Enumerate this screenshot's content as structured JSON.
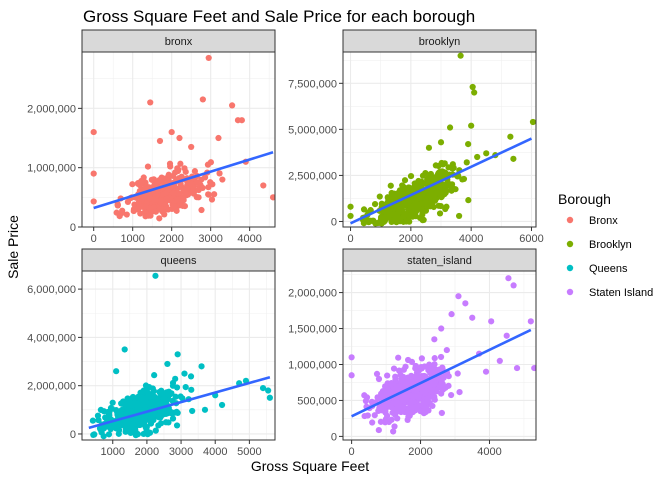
{
  "chart_data": {
    "type": "scatter",
    "title": "Gross Square Feet and Sale Price for each borough",
    "xlabel": "Gross Square Feet",
    "ylabel": "Sale Price",
    "legend": {
      "title": "Borough",
      "placement": "right",
      "entries": [
        {
          "label": "Bronx",
          "color": "#F8766D"
        },
        {
          "label": "Brooklyn",
          "color": "#7CAE00"
        },
        {
          "label": "Queens",
          "color": "#00BFC4"
        },
        {
          "label": "Staten Island",
          "color": "#C77CFF"
        }
      ]
    },
    "panels": [
      {
        "strip": "bronx",
        "color": "#F8766D",
        "xlim": [
          -300,
          4650
        ],
        "ylim": [
          0,
          2950000
        ],
        "xticks": [
          0,
          1000,
          2000,
          3000,
          4000
        ],
        "xtick_labels": [
          "0",
          "1000",
          "2000",
          "3000",
          "4000"
        ],
        "yticks": [
          0,
          1000000,
          2000000
        ],
        "ytick_labels": [
          "0",
          "1,000,000",
          "2,000,000"
        ],
        "fit": {
          "x": [
            0,
            4600
          ],
          "y": [
            320000,
            1260000
          ]
        },
        "cluster": {
          "cx": 1850,
          "sx": 500,
          "cy": 560000,
          "sy": 180000,
          "slope": 150,
          "n": 300,
          "seed": 11
        },
        "points": [
          [
            2950,
            2850000
          ],
          [
            1450,
            2100000
          ],
          [
            2800,
            2150000
          ],
          [
            3550,
            2050000
          ],
          [
            3700,
            1800000
          ],
          [
            3800,
            1800000
          ],
          [
            0,
            1600000
          ],
          [
            0,
            900000
          ],
          [
            0,
            430000
          ],
          [
            4350,
            700000
          ],
          [
            4600,
            500000
          ],
          [
            2000,
            1600000
          ],
          [
            2500,
            1350000
          ],
          [
            3200,
            1500000
          ],
          [
            2200,
            1500000
          ],
          [
            3900,
            1100000
          ],
          [
            1700,
            1450000
          ],
          [
            3300,
            800000
          ]
        ]
      },
      {
        "strip": "brooklyn",
        "color": "#7CAE00",
        "xlim": [
          -250,
          6150
        ],
        "ylim": [
          -300000,
          9200000
        ],
        "xticks": [
          0,
          2000,
          4000,
          6000
        ],
        "xtick_labels": [
          "0",
          "2000",
          "4000",
          "6000"
        ],
        "yticks": [
          0,
          2500000,
          5000000,
          7500000
        ],
        "ytick_labels": [
          "0",
          "2,500,000",
          "5,000,000",
          "7,500,000"
        ],
        "fit": {
          "x": [
            0,
            6000
          ],
          "y": [
            -100000,
            4500000
          ]
        },
        "cluster": {
          "cx": 2100,
          "sx": 650,
          "cy": 1200000,
          "sy": 500000,
          "slope": 800,
          "n": 480,
          "seed": 22
        },
        "points": [
          [
            3650,
            9000000
          ],
          [
            4050,
            7300000
          ],
          [
            4100,
            7000000
          ],
          [
            6050,
            5400000
          ],
          [
            3300,
            5100000
          ],
          [
            4000,
            5200000
          ],
          [
            5300,
            4600000
          ],
          [
            3900,
            4200000
          ],
          [
            4500,
            3700000
          ],
          [
            5400,
            3400000
          ],
          [
            4800,
            3600000
          ],
          [
            0,
            800000
          ],
          [
            0,
            300000
          ],
          [
            3600,
            300000
          ],
          [
            4200,
            3500000
          ],
          [
            3000,
            4300000
          ],
          [
            2600,
            4000000
          ]
        ]
      },
      {
        "strip": "queens",
        "color": "#00BFC4",
        "xlim": [
          100,
          5750
        ],
        "ylim": [
          -250000,
          6750000
        ],
        "xticks": [
          1000,
          2000,
          3000,
          4000,
          5000
        ],
        "xtick_labels": [
          "1000",
          "2000",
          "3000",
          "4000",
          "5000"
        ],
        "yticks": [
          0,
          2000000,
          4000000,
          6000000
        ],
        "ytick_labels": [
          "0",
          "2,000,000",
          "4,000,000",
          "6,000,000"
        ],
        "fit": {
          "x": [
            300,
            5600
          ],
          "y": [
            250000,
            2350000
          ]
        },
        "cluster": {
          "cx": 1800,
          "sx": 550,
          "cy": 900000,
          "sy": 380000,
          "slope": 400,
          "n": 480,
          "seed": 33
        },
        "points": [
          [
            2250,
            6550000
          ],
          [
            1350,
            3500000
          ],
          [
            2900,
            3300000
          ],
          [
            3600,
            2800000
          ],
          [
            5400,
            1900000
          ],
          [
            5550,
            1800000
          ],
          [
            5600,
            1500000
          ],
          [
            4900,
            2200000
          ],
          [
            4700,
            2100000
          ],
          [
            3100,
            2500000
          ],
          [
            3700,
            1000000
          ],
          [
            4200,
            1200000
          ],
          [
            2600,
            2900000
          ],
          [
            4000,
            1600000
          ],
          [
            1100,
            2600000
          ]
        ]
      },
      {
        "strip": "staten_island",
        "color": "#C77CFF",
        "xlim": [
          -250,
          5350
        ],
        "ylim": [
          -50000,
          2300000
        ],
        "xticks": [
          0,
          2000,
          4000
        ],
        "xtick_labels": [
          "0",
          "2000",
          "4000"
        ],
        "yticks": [
          0,
          500000,
          1000000,
          1500000,
          2000000
        ],
        "ytick_labels": [
          "0",
          "500,000",
          "1,000,000",
          "1,500,000",
          "2,000,000"
        ],
        "fit": {
          "x": [
            0,
            5200
          ],
          "y": [
            280000,
            1480000
          ]
        },
        "cluster": {
          "cx": 1700,
          "sx": 520,
          "cy": 620000,
          "sy": 170000,
          "slope": 170,
          "n": 480,
          "seed": 44
        },
        "points": [
          [
            4550,
            2200000
          ],
          [
            4700,
            2100000
          ],
          [
            3100,
            1950000
          ],
          [
            3300,
            1850000
          ],
          [
            2900,
            1700000
          ],
          [
            3500,
            1650000
          ],
          [
            4050,
            1600000
          ],
          [
            4500,
            1400000
          ],
          [
            5200,
            1600000
          ],
          [
            5300,
            950000
          ],
          [
            4800,
            950000
          ],
          [
            0,
            1100000
          ],
          [
            0,
            850000
          ],
          [
            3700,
            1150000
          ],
          [
            3900,
            900000
          ],
          [
            4300,
            1050000
          ],
          [
            2600,
            1500000
          ],
          [
            2400,
            1350000
          ]
        ]
      }
    ]
  }
}
